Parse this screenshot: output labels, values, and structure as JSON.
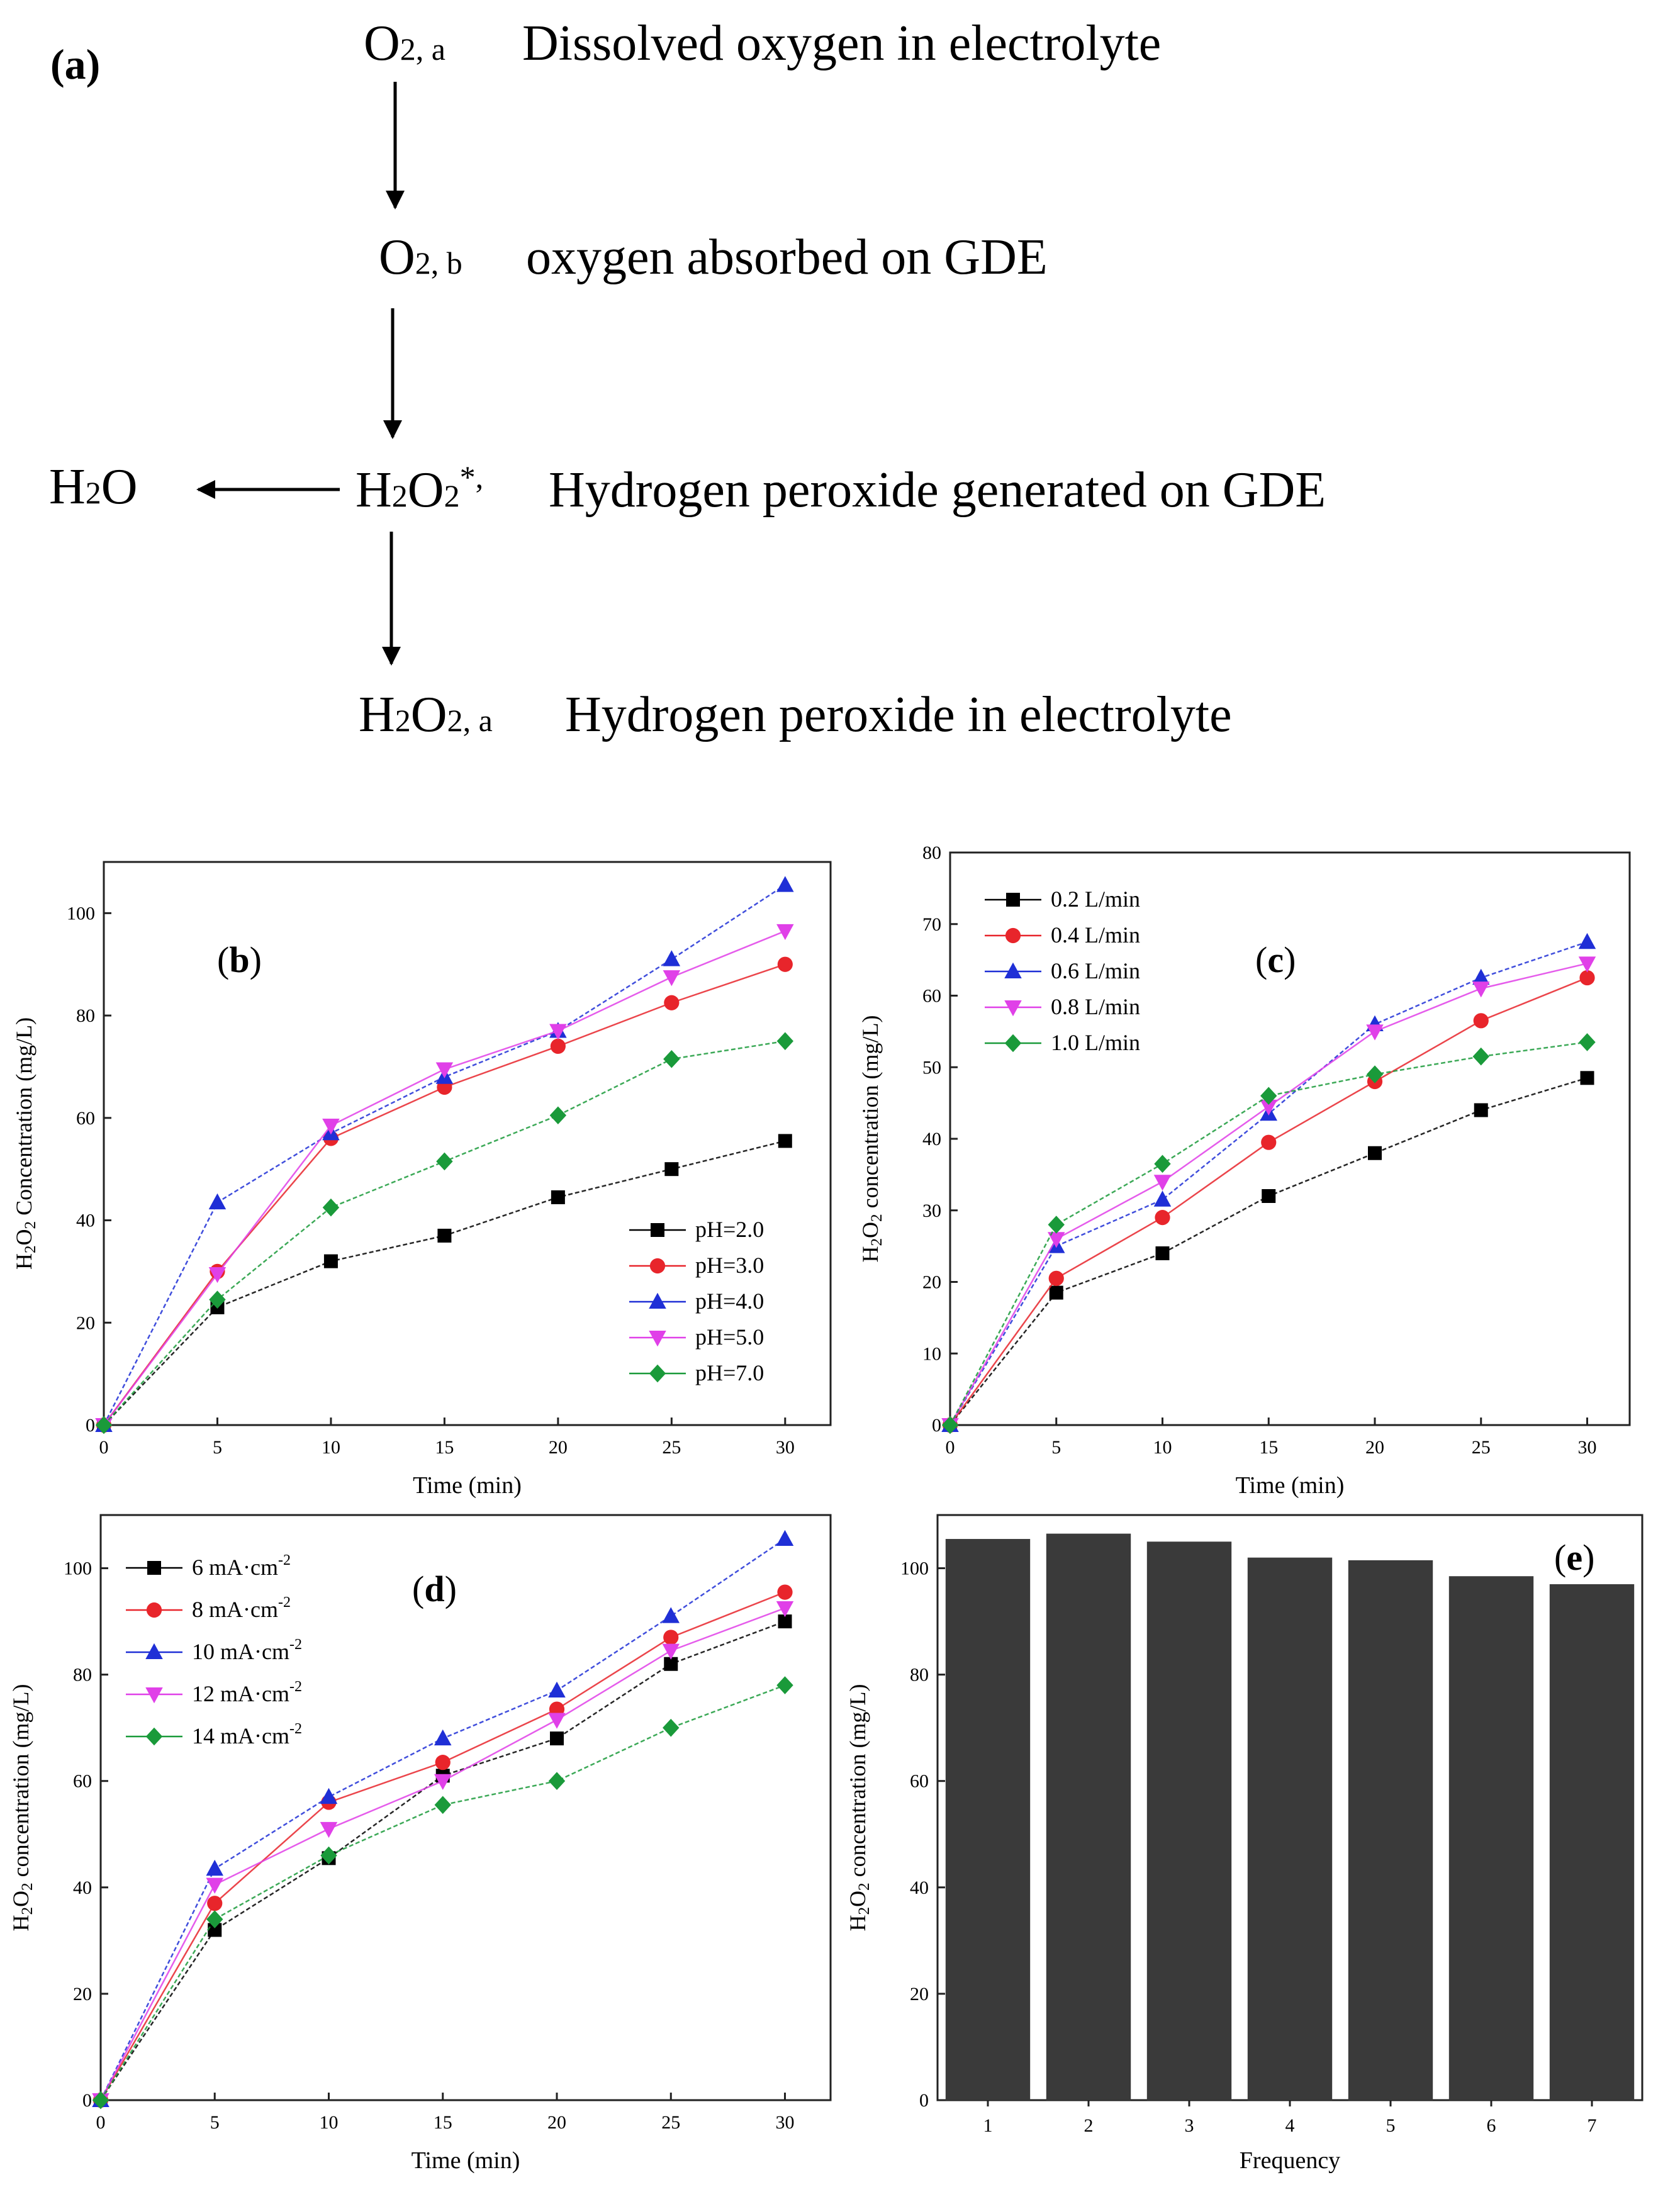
{
  "scheme": {
    "label": "(a)",
    "nodes": [
      {
        "formula": "O",
        "sub": "2, a",
        "sup": "",
        "desc": "Dissolved oxygen in electrolyte"
      },
      {
        "formula": "O",
        "sub": "2, b",
        "sup": "",
        "desc": "oxygen absorbed on GDE"
      },
      {
        "formula": "H",
        "sub": "2",
        "mid": "O",
        "sub2": "2",
        "sup": "*,",
        "desc": "Hydrogen peroxide generated on GDE"
      },
      {
        "formula": "H",
        "sub": "2",
        "mid": "O",
        "sub2": "2, a",
        "sup": "",
        "desc": "Hydrogen peroxide in electrolyte"
      }
    ],
    "side_product": {
      "formula": "H",
      "sub": "2",
      "mid": "O"
    }
  },
  "chart_data": [
    {
      "panel": "(b)",
      "type": "line",
      "xlabel": "Time (min)",
      "ylabel": "H2O2 Concentration (mg/L)",
      "x": [
        0,
        5,
        10,
        15,
        20,
        25,
        30
      ],
      "xlim": [
        0,
        32
      ],
      "ylim": [
        0,
        110
      ],
      "xticks": [
        0,
        5,
        10,
        15,
        20,
        25,
        30
      ],
      "yticks": [
        0,
        20,
        40,
        60,
        80,
        100
      ],
      "legend_position": "bottom-right",
      "series": [
        {
          "name": "pH=2.0",
          "color": "#000000",
          "marker": "square",
          "values": [
            0,
            23,
            32,
            37,
            44.5,
            50,
            55.5
          ]
        },
        {
          "name": "pH=3.0",
          "color": "#e8252b",
          "marker": "circle",
          "values": [
            0,
            30,
            56,
            66,
            74,
            82.5,
            90
          ]
        },
        {
          "name": "pH=4.0",
          "color": "#1f2fd6",
          "marker": "triangle-up",
          "values": [
            0,
            43.5,
            57,
            68,
            77,
            91,
            105.5
          ]
        },
        {
          "name": "pH=5.0",
          "color": "#e040e8",
          "marker": "triangle-down",
          "values": [
            0,
            29.5,
            58.5,
            69.5,
            77,
            87.5,
            96.5
          ]
        },
        {
          "name": "pH=7.0",
          "color": "#1a9a3a",
          "marker": "diamond",
          "values": [
            0,
            24.5,
            42.5,
            51.5,
            60.5,
            71.5,
            75
          ]
        }
      ]
    },
    {
      "panel": "(c)",
      "type": "line",
      "xlabel": "Time (min)",
      "ylabel": "H2O2 concentration (mg/L)",
      "x": [
        0,
        5,
        10,
        15,
        20,
        25,
        30
      ],
      "xlim": [
        0,
        32
      ],
      "ylim": [
        0,
        80
      ],
      "xticks": [
        0,
        5,
        10,
        15,
        20,
        25,
        30
      ],
      "yticks": [
        0,
        10,
        20,
        30,
        40,
        50,
        60,
        70,
        80
      ],
      "legend_position": "top-left",
      "series": [
        {
          "name": "0.2 L/min",
          "color": "#000000",
          "marker": "square",
          "values": [
            0,
            18.5,
            24,
            32,
            38,
            44,
            48.5
          ]
        },
        {
          "name": "0.4 L/min",
          "color": "#e8252b",
          "marker": "circle",
          "values": [
            0,
            20.5,
            29,
            39.5,
            48,
            56.5,
            62.5
          ]
        },
        {
          "name": "0.6 L/min",
          "color": "#1f2fd6",
          "marker": "triangle-up",
          "values": [
            0,
            25,
            31.5,
            43.5,
            56,
            62.5,
            67.5
          ]
        },
        {
          "name": "0.8 L/min",
          "color": "#e040e8",
          "marker": "triangle-down",
          "values": [
            0,
            26,
            34,
            44.5,
            55,
            61,
            64.5
          ]
        },
        {
          "name": "1.0 L/min",
          "color": "#1a9a3a",
          "marker": "diamond",
          "values": [
            0,
            28,
            36.5,
            46,
            49,
            51.5,
            53.5
          ]
        }
      ]
    },
    {
      "panel": "(d)",
      "type": "line",
      "xlabel": "Time (min)",
      "ylabel": "H2O2 concentration (mg/L)",
      "x": [
        0,
        5,
        10,
        15,
        20,
        25,
        30
      ],
      "xlim": [
        0,
        32
      ],
      "ylim": [
        0,
        110
      ],
      "xticks": [
        0,
        5,
        10,
        15,
        20,
        25,
        30
      ],
      "yticks": [
        0,
        20,
        40,
        60,
        80,
        100
      ],
      "legend_position": "top-left",
      "series": [
        {
          "name": "6 mA·cm",
          "unit_sup": "-2",
          "color": "#000000",
          "marker": "square",
          "values": [
            0,
            32,
            45.5,
            61,
            68,
            82,
            90
          ]
        },
        {
          "name": "8 mA·cm",
          "unit_sup": "-2",
          "color": "#e8252b",
          "marker": "circle",
          "values": [
            0,
            37,
            56,
            63.5,
            73.5,
            87,
            95.5
          ]
        },
        {
          "name": "10 mA·cm",
          "unit_sup": "-2",
          "color": "#1f2fd6",
          "marker": "triangle-up",
          "values": [
            0,
            43.5,
            57,
            68,
            77,
            91,
            105.5
          ]
        },
        {
          "name": "12 mA·cm",
          "unit_sup": "-2",
          "color": "#e040e8",
          "marker": "triangle-down",
          "values": [
            0,
            40.5,
            51,
            60,
            71.5,
            84.5,
            92.5
          ]
        },
        {
          "name": "14 mA·cm",
          "unit_sup": "-2",
          "color": "#1a9a3a",
          "marker": "diamond",
          "values": [
            0,
            34,
            46,
            55.5,
            60,
            70,
            78
          ]
        }
      ]
    },
    {
      "panel": "(e)",
      "type": "bar",
      "xlabel": "Frequency",
      "ylabel": "H2O2 concentration (mg/L)",
      "categories": [
        "1",
        "2",
        "3",
        "4",
        "5",
        "6",
        "7"
      ],
      "values": [
        105.5,
        106.5,
        105,
        102,
        101.5,
        98.5,
        97
      ],
      "ylim": [
        0,
        110
      ],
      "yticks": [
        0,
        20,
        40,
        60,
        80,
        100
      ],
      "bar_color": "#3a3a3a"
    }
  ]
}
